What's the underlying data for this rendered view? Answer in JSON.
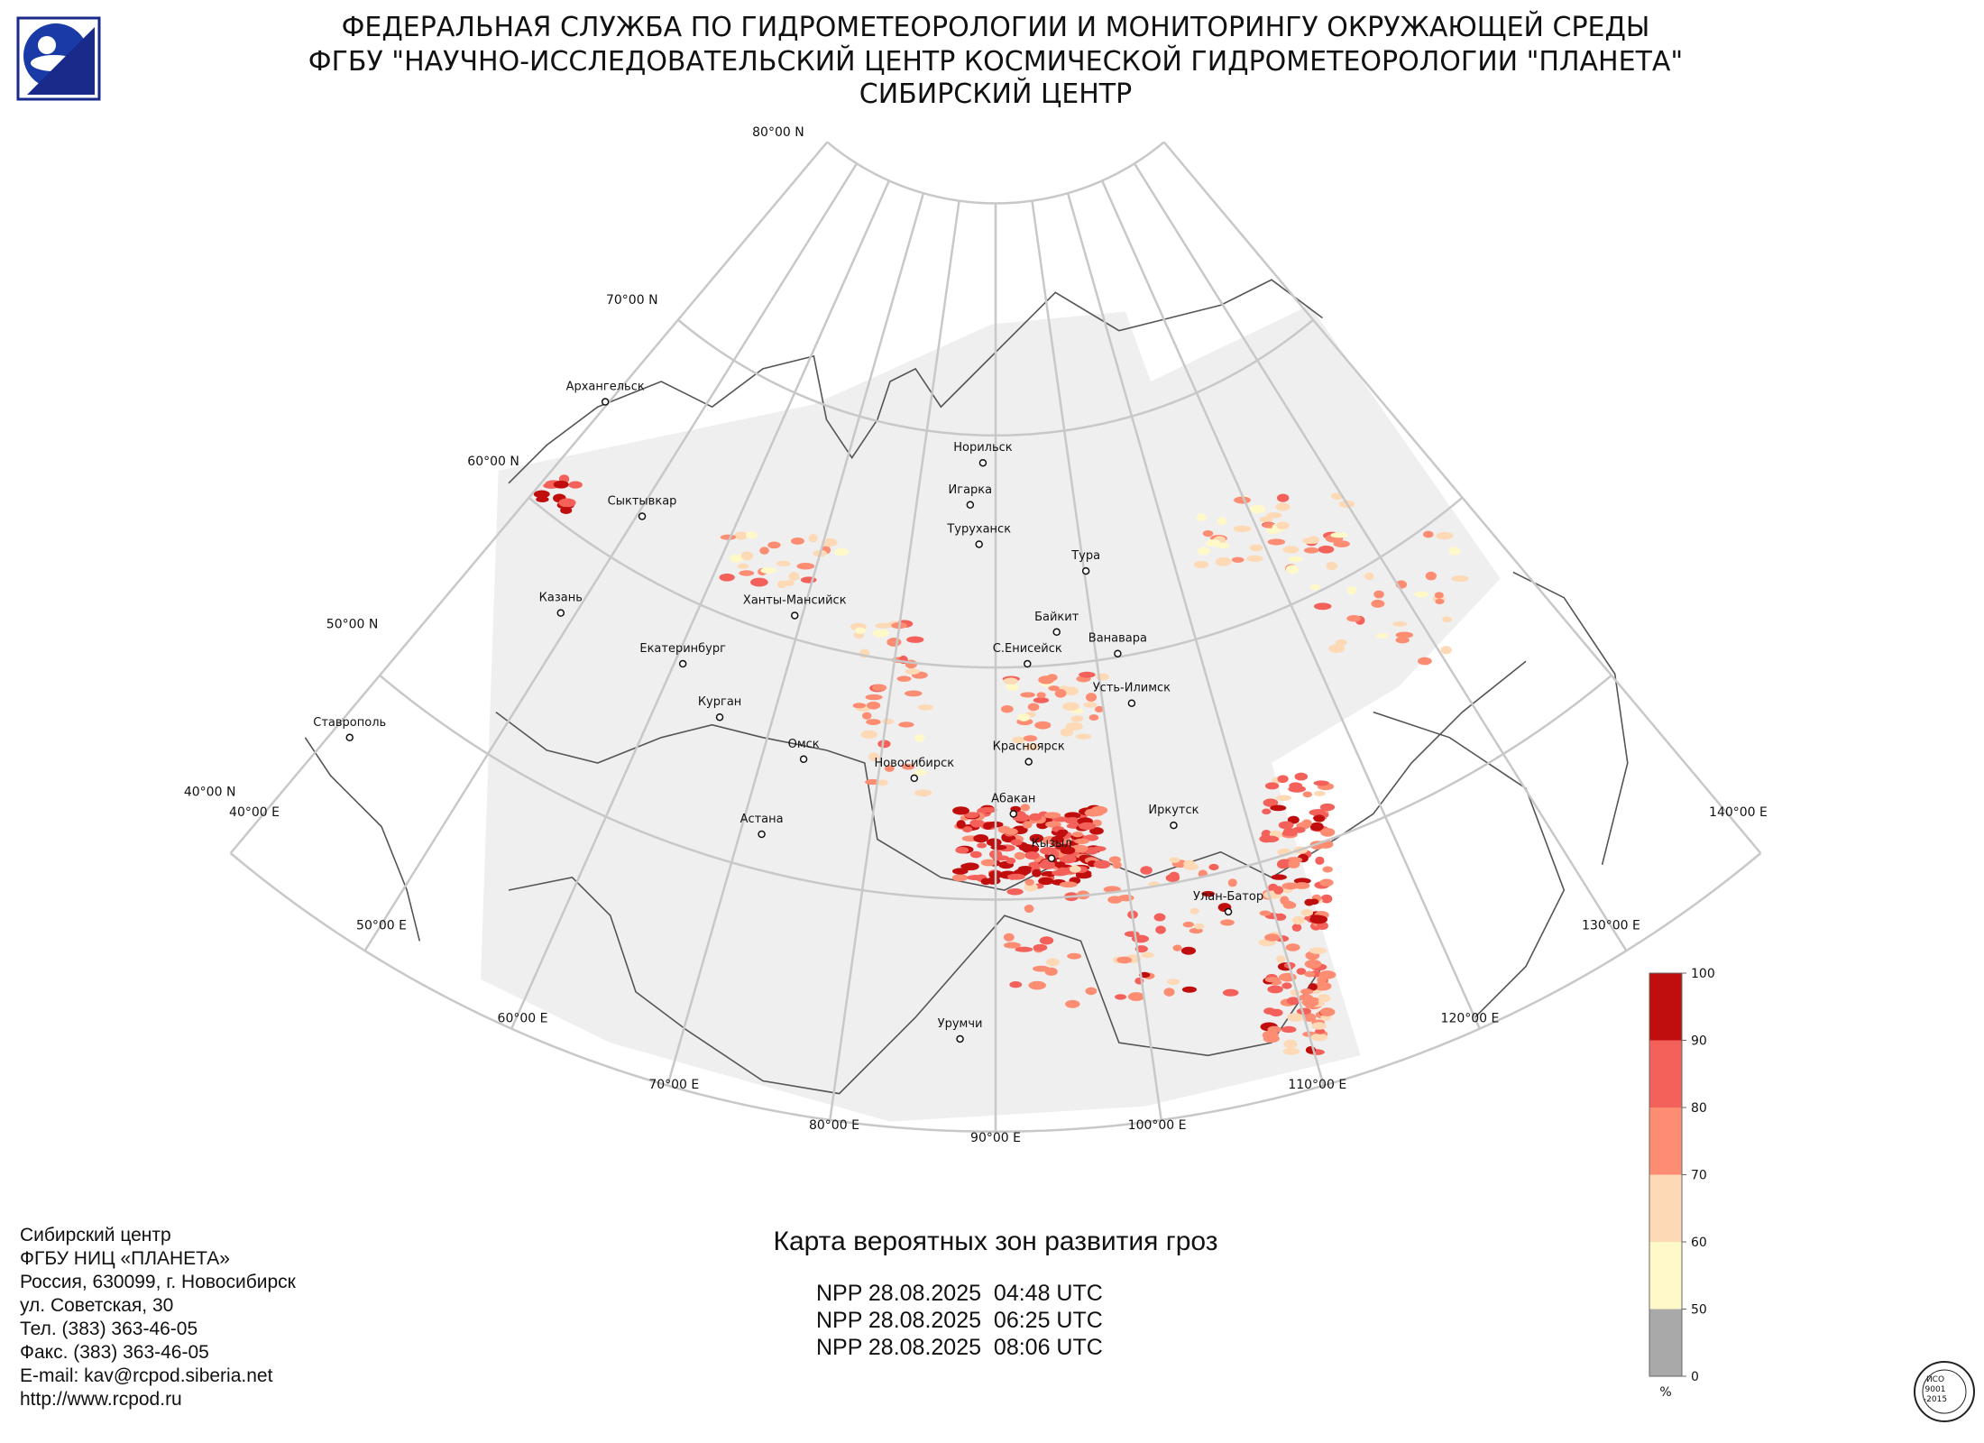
{
  "header": {
    "lines": [
      "ФЕДЕРАЛЬНАЯ СЛУЖБА ПО ГИДРОМЕТЕОРОЛОГИИ И МОНИТОРИНГУ ОКРУЖАЮЩЕЙ СРЕДЫ",
      "ФГБУ \"НАУЧНО-ИССЛЕДОВАТЕЛЬСКИЙ ЦЕНТР КОСМИЧЕСКОЙ ГИДРОМЕТЕОРОЛОГИИ \"ПЛАНЕТА\"",
      "СИБИРСКИЙ ЦЕНТР"
    ]
  },
  "map": {
    "lat_labels": [
      "80°00 N",
      "70°00 N",
      "60°00 N",
      "50°00 N",
      "40°00 N"
    ],
    "lon_labels": [
      "40°00 E",
      "50°00 E",
      "60°00 E",
      "70°00 E",
      "80°00 E",
      "90°00 E",
      "100°00 E",
      "110°00 E",
      "120°00 E",
      "130°00 E",
      "140°00 E"
    ],
    "cities": [
      "Архангельск",
      "Сыктывкар",
      "Казань",
      "Екатеринбург",
      "Курган",
      "Ставрополь",
      "Ханты-Мансийск",
      "Омск",
      "Астана",
      "Новосибирск",
      "Норильск",
      "Игарка",
      "Туруханск",
      "Тура",
      "Байкит",
      "С.Енисейск",
      "Ванавара",
      "Усть-Илимск",
      "Красноярск",
      "Абакан",
      "Кызыл",
      "Иркутск",
      "Улан-Батор",
      "Урумчи"
    ]
  },
  "title": "Карта вероятных зон развития гроз",
  "passes": [
    "NPP 28.08.2025  04:48 UTC",
    "NPP 28.08.2025  06:25 UTC",
    "NPP 28.08.2025  08:06 UTC"
  ],
  "contacts": [
    "Сибирский центр",
    "ФГБУ НИЦ «ПЛАНЕТА»",
    "Россия, 630099, г. Новосибирск",
    "ул. Советская, 30",
    "Тел. (383) 363-46-05",
    "Факс. (383) 363-46-05",
    "E-mail: kav@rcpod.siberia.net",
    "http://www.rcpod.ru"
  ],
  "legend": {
    "ticks": [
      0,
      50,
      60,
      70,
      80,
      90,
      100
    ],
    "colors": [
      "#a9a9a9",
      "#fff8c8",
      "#fdd9b5",
      "#fc8d72",
      "#f4605a",
      "#c00e0e"
    ],
    "unit": "%"
  },
  "certificate": [
    "ИСО",
    "9001",
    "-2015"
  ]
}
